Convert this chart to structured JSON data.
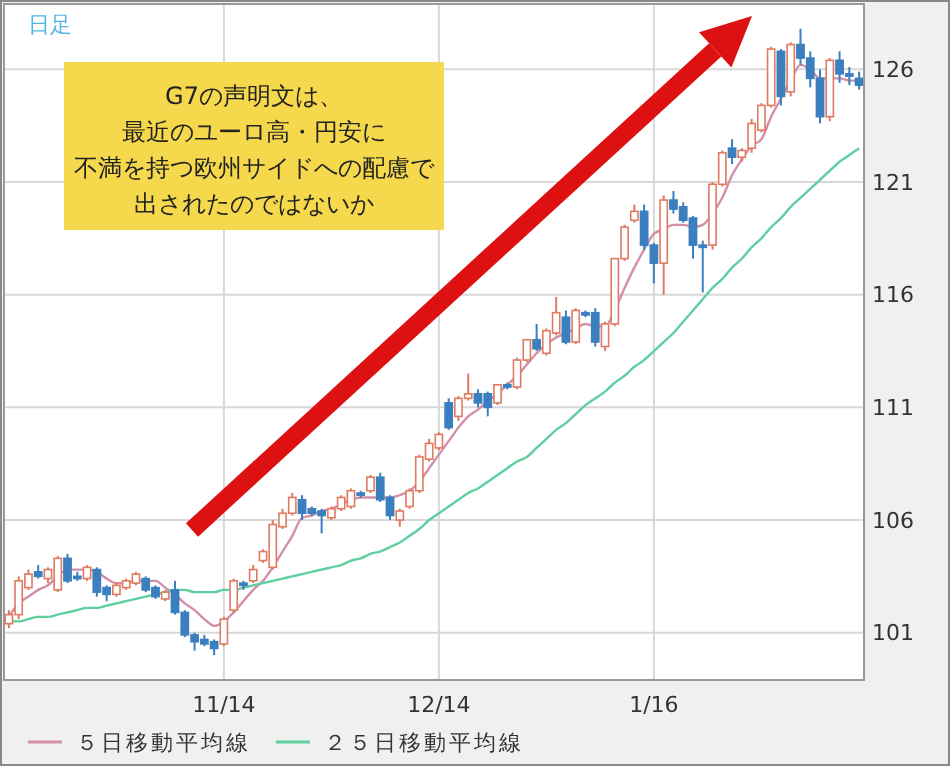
{
  "chart_data": {
    "type": "candlestick",
    "title": "日足",
    "categories": [
      null,
      null,
      null,
      null,
      null,
      null,
      null,
      null,
      null,
      null,
      null,
      null,
      null,
      null,
      null,
      null,
      null,
      null,
      null,
      null,
      null,
      null,
      "11/14",
      null,
      null,
      null,
      null,
      null,
      null,
      null,
      null,
      null,
      null,
      null,
      null,
      null,
      null,
      null,
      null,
      null,
      null,
      null,
      null,
      null,
      "12/14",
      null,
      null,
      null,
      null,
      null,
      null,
      null,
      null,
      null,
      null,
      null,
      null,
      null,
      null,
      null,
      null,
      null,
      null,
      null,
      null,
      null,
      "1/16",
      null,
      null,
      null,
      null,
      null,
      null,
      null,
      null,
      null,
      null,
      null,
      null,
      null,
      null,
      null,
      null,
      null,
      null,
      null,
      null,
      null
    ],
    "ohlc": [
      [
        101.4,
        102.0,
        101.2,
        101.8
      ],
      [
        101.8,
        103.5,
        101.6,
        103.3
      ],
      [
        103.0,
        103.8,
        102.9,
        103.6
      ],
      [
        103.7,
        104.0,
        103.4,
        103.5
      ],
      [
        103.4,
        103.9,
        103.2,
        103.8
      ],
      [
        102.9,
        104.4,
        102.8,
        104.3
      ],
      [
        104.3,
        104.5,
        103.2,
        103.3
      ],
      [
        103.5,
        103.7,
        103.3,
        103.4
      ],
      [
        103.4,
        104.0,
        103.3,
        103.9
      ],
      [
        103.8,
        103.9,
        102.6,
        102.8
      ],
      [
        103.0,
        103.1,
        102.4,
        102.7
      ],
      [
        102.7,
        103.2,
        102.6,
        103.1
      ],
      [
        103.0,
        103.4,
        102.9,
        103.3
      ],
      [
        103.2,
        103.7,
        103.1,
        103.6
      ],
      [
        103.4,
        103.5,
        102.8,
        102.9
      ],
      [
        103.0,
        103.1,
        102.5,
        102.6
      ],
      [
        102.5,
        102.9,
        102.4,
        102.8
      ],
      [
        102.9,
        103.3,
        101.8,
        101.9
      ],
      [
        101.9,
        102.0,
        100.8,
        100.9
      ],
      [
        100.9,
        101.0,
        100.2,
        100.6
      ],
      [
        100.7,
        100.9,
        100.4,
        100.5
      ],
      [
        100.6,
        100.7,
        100.0,
        100.3
      ],
      [
        100.5,
        101.7,
        100.4,
        101.6
      ],
      [
        102.0,
        103.4,
        101.9,
        103.3
      ],
      [
        103.2,
        103.3,
        102.9,
        103.1
      ],
      [
        103.3,
        104.0,
        103.2,
        103.8
      ],
      [
        104.2,
        104.7,
        104.1,
        104.6
      ],
      [
        103.9,
        106.0,
        103.8,
        105.8
      ],
      [
        105.7,
        106.5,
        105.6,
        106.3
      ],
      [
        106.3,
        107.2,
        106.2,
        107.0
      ],
      [
        106.9,
        107.1,
        106.0,
        106.3
      ],
      [
        106.5,
        106.6,
        106.2,
        106.3
      ],
      [
        106.4,
        106.5,
        105.4,
        106.2
      ],
      [
        106.1,
        106.6,
        106.0,
        106.5
      ],
      [
        106.5,
        107.1,
        106.4,
        107.0
      ],
      [
        106.6,
        107.4,
        106.5,
        107.3
      ],
      [
        107.2,
        107.3,
        107.0,
        107.1
      ],
      [
        107.3,
        108.0,
        107.2,
        107.9
      ],
      [
        107.9,
        108.1,
        106.8,
        106.9
      ],
      [
        107.0,
        107.1,
        106.0,
        106.2
      ],
      [
        106.0,
        106.5,
        105.7,
        106.4
      ],
      [
        106.6,
        107.4,
        106.5,
        107.3
      ],
      [
        107.3,
        108.9,
        107.2,
        108.8
      ],
      [
        108.7,
        109.6,
        108.6,
        109.4
      ],
      [
        109.2,
        109.9,
        109.1,
        109.8
      ],
      [
        111.2,
        111.4,
        110.0,
        110.1
      ],
      [
        110.6,
        111.5,
        110.4,
        111.4
      ],
      [
        111.4,
        112.5,
        111.3,
        111.6
      ],
      [
        111.6,
        111.8,
        111.0,
        111.2
      ],
      [
        111.6,
        111.7,
        110.6,
        111.0
      ],
      [
        111.2,
        112.0,
        111.1,
        112.0
      ],
      [
        112.0,
        112.1,
        111.8,
        111.9
      ],
      [
        111.9,
        113.2,
        111.8,
        113.1
      ],
      [
        113.1,
        114.0,
        113.0,
        114.0
      ],
      [
        114.0,
        114.7,
        113.5,
        113.6
      ],
      [
        113.4,
        114.5,
        113.3,
        114.4
      ],
      [
        114.3,
        115.9,
        114.2,
        115.2
      ],
      [
        115.0,
        115.3,
        113.8,
        113.9
      ],
      [
        113.9,
        115.4,
        113.8,
        115.3
      ],
      [
        115.2,
        115.3,
        115.0,
        115.1
      ],
      [
        115.2,
        115.4,
        113.7,
        113.9
      ],
      [
        113.7,
        114.8,
        113.5,
        114.7
      ],
      [
        114.7,
        117.6,
        114.6,
        117.6
      ],
      [
        117.6,
        119.1,
        117.5,
        119.0
      ],
      [
        119.3,
        120.0,
        119.2,
        119.7
      ],
      [
        119.7,
        120.0,
        118.0,
        118.2
      ],
      [
        118.2,
        118.3,
        116.5,
        117.4
      ],
      [
        117.4,
        120.4,
        116.0,
        120.2
      ],
      [
        120.2,
        120.6,
        119.6,
        119.8
      ],
      [
        119.9,
        120.1,
        119.2,
        119.3
      ],
      [
        119.4,
        119.5,
        117.6,
        118.2
      ],
      [
        118.2,
        118.4,
        116.1,
        118.1
      ],
      [
        118.2,
        121.0,
        118.0,
        120.9
      ],
      [
        120.9,
        122.4,
        120.8,
        122.3
      ],
      [
        122.5,
        122.9,
        121.8,
        122.1
      ],
      [
        122.1,
        122.5,
        121.9,
        122.4
      ],
      [
        122.5,
        123.8,
        122.3,
        123.6
      ],
      [
        123.3,
        124.5,
        123.2,
        124.4
      ],
      [
        124.4,
        127.0,
        124.3,
        126.9
      ],
      [
        126.8,
        126.9,
        124.4,
        124.8
      ],
      [
        125.0,
        127.2,
        124.8,
        127.1
      ],
      [
        127.1,
        127.8,
        126.2,
        126.5
      ],
      [
        126.5,
        126.8,
        125.2,
        125.6
      ],
      [
        125.6,
        126.0,
        123.6,
        123.9
      ],
      [
        123.9,
        126.5,
        123.7,
        126.4
      ],
      [
        126.4,
        126.8,
        125.4,
        125.8
      ],
      [
        125.8,
        126.1,
        125.3,
        125.7
      ],
      [
        125.6,
        125.9,
        125.1,
        125.3
      ]
    ],
    "series": [
      {
        "name": "５日移動平均線",
        "type": "line",
        "color": "#d48fa8",
        "values": [
          101.7,
          102.3,
          102.6,
          102.9,
          103.1,
          103.5,
          103.8,
          103.8,
          103.8,
          103.7,
          103.4,
          103.2,
          103.2,
          103.3,
          103.3,
          103.3,
          103.0,
          102.7,
          102.3,
          102.0,
          101.6,
          101.3,
          101.5,
          101.9,
          102.4,
          102.9,
          103.3,
          103.9,
          104.6,
          105.3,
          106.1,
          106.2,
          106.4,
          106.5,
          106.7,
          106.9,
          107.0,
          107.0,
          107.0,
          107.0,
          107.1,
          107.3,
          107.7,
          108.3,
          108.9,
          109.5,
          110.1,
          110.6,
          110.9,
          111.3,
          111.6,
          112.0,
          112.4,
          112.9,
          113.4,
          113.8,
          114.1,
          114.3,
          114.5,
          114.7,
          114.6,
          114.6,
          115.3,
          116.3,
          117.2,
          118.0,
          118.7,
          118.9,
          119.1,
          119.1,
          119.0,
          119.1,
          119.6,
          120.3,
          121.3,
          122.0,
          122.6,
          122.9,
          123.9,
          124.7,
          125.5,
          126.2,
          126.0,
          125.6,
          125.6,
          125.6,
          125.5,
          125.5
        ]
      },
      {
        "name": "２５日移動平均線",
        "type": "line",
        "color": "#5fcf9f",
        "values": [
          101.5,
          101.5,
          101.6,
          101.7,
          101.7,
          101.8,
          101.9,
          102.0,
          102.1,
          102.1,
          102.2,
          102.3,
          102.4,
          102.5,
          102.6,
          102.7,
          102.8,
          102.9,
          102.9,
          102.8,
          102.8,
          102.8,
          102.9,
          102.9,
          103.0,
          103.1,
          103.2,
          103.3,
          103.4,
          103.5,
          103.6,
          103.7,
          103.8,
          103.9,
          104.0,
          104.2,
          104.3,
          104.5,
          104.6,
          104.8,
          105.0,
          105.3,
          105.6,
          106.0,
          106.3,
          106.6,
          106.9,
          107.2,
          107.4,
          107.7,
          108.0,
          108.3,
          108.6,
          108.8,
          109.2,
          109.6,
          110.0,
          110.3,
          110.7,
          111.1,
          111.4,
          111.7,
          112.1,
          112.4,
          112.8,
          113.1,
          113.5,
          113.9,
          114.3,
          114.8,
          115.3,
          115.8,
          116.3,
          116.7,
          117.2,
          117.6,
          118.1,
          118.5,
          119.0,
          119.4,
          119.9,
          120.3,
          120.7,
          121.1,
          121.5,
          121.9,
          122.2,
          122.5
        ]
      }
    ],
    "ylim": [
      98.9,
      128.9
    ],
    "yticks": [
      101,
      106,
      111,
      116,
      121,
      126
    ],
    "grid": true,
    "legend": "bottom",
    "annotations": [
      "G7の声明文は、",
      "最近のユーロ高・円安に",
      "不満を持つ欧州サイドへの配慮で",
      "出されたのではないか"
    ]
  }
}
